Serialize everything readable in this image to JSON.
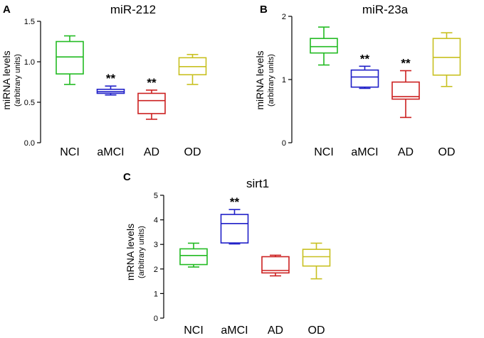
{
  "charts": [
    {
      "panel": "A",
      "title": "miR-212",
      "ylabel": "miRNA levels",
      "ylabel_sub": "(arbitrary units)",
      "yticks": [
        "0.0",
        "0.5",
        "1.0",
        "1.5"
      ]
    },
    {
      "panel": "B",
      "title": "miR-23a",
      "ylabel": "miRNA levels",
      "ylabel_sub": "(arbitrary units)",
      "yticks": [
        "0",
        "1",
        "2"
      ]
    },
    {
      "panel": "C",
      "title": "sirt1",
      "ylabel": "mRNA levels",
      "ylabel_sub": "(arbitrary units)",
      "yticks": [
        "0",
        "1",
        "2",
        "3",
        "4",
        "5"
      ]
    }
  ],
  "chart_data": [
    {
      "type": "box",
      "panel": "A",
      "title": "miR-212",
      "ylabel": "miRNA levels (arbitrary units)",
      "ylim": [
        0,
        1.5
      ],
      "categories": [
        "NCI",
        "aMCI",
        "AD",
        "OD"
      ],
      "colors": [
        "#22bb22",
        "#1f1fc8",
        "#cc2020",
        "#c8c020"
      ],
      "boxes": [
        {
          "min": 0.72,
          "q1": 0.85,
          "median": 1.06,
          "q3": 1.25,
          "max": 1.32
        },
        {
          "min": 0.59,
          "q1": 0.61,
          "median": 0.63,
          "q3": 0.66,
          "max": 0.7
        },
        {
          "min": 0.29,
          "q1": 0.36,
          "median": 0.52,
          "q3": 0.61,
          "max": 0.65
        },
        {
          "min": 0.72,
          "q1": 0.84,
          "median": 0.94,
          "q3": 1.05,
          "max": 1.09
        }
      ],
      "significance": [
        "",
        "**",
        "**",
        ""
      ]
    },
    {
      "type": "box",
      "panel": "B",
      "title": "miR-23a",
      "ylabel": "miRNA levels (arbitrary units)",
      "ylim": [
        0,
        2
      ],
      "categories": [
        "NCI",
        "aMCI",
        "AD",
        "OD"
      ],
      "colors": [
        "#22bb22",
        "#1f1fc8",
        "#cc2020",
        "#c8c020"
      ],
      "boxes": [
        {
          "min": 1.23,
          "q1": 1.42,
          "median": 1.52,
          "q3": 1.65,
          "max": 1.83
        },
        {
          "min": 0.86,
          "q1": 0.88,
          "median": 1.04,
          "q3": 1.15,
          "max": 1.21
        },
        {
          "min": 0.4,
          "q1": 0.69,
          "median": 0.73,
          "q3": 0.96,
          "max": 1.14
        },
        {
          "min": 0.89,
          "q1": 1.07,
          "median": 1.35,
          "q3": 1.65,
          "max": 1.74
        }
      ],
      "significance": [
        "",
        "**",
        "**",
        ""
      ]
    },
    {
      "type": "box",
      "panel": "C",
      "title": "sirt1",
      "ylabel": "mRNA levels (arbitrary units)",
      "ylim": [
        0,
        5
      ],
      "categories": [
        "NCI",
        "aMCI",
        "AD",
        "OD"
      ],
      "colors": [
        "#22bb22",
        "#1f1fc8",
        "#cc2020",
        "#c8c020"
      ],
      "boxes": [
        {
          "min": 2.08,
          "q1": 2.18,
          "median": 2.55,
          "q3": 2.82,
          "max": 3.05
        },
        {
          "min": 3.02,
          "q1": 3.06,
          "median": 3.85,
          "q3": 4.22,
          "max": 4.42
        },
        {
          "min": 1.72,
          "q1": 1.84,
          "median": 1.94,
          "q3": 2.5,
          "max": 2.56
        },
        {
          "min": 1.6,
          "q1": 2.12,
          "median": 2.5,
          "q3": 2.8,
          "max": 3.05
        }
      ],
      "significance": [
        "",
        "**",
        "",
        ""
      ]
    }
  ]
}
